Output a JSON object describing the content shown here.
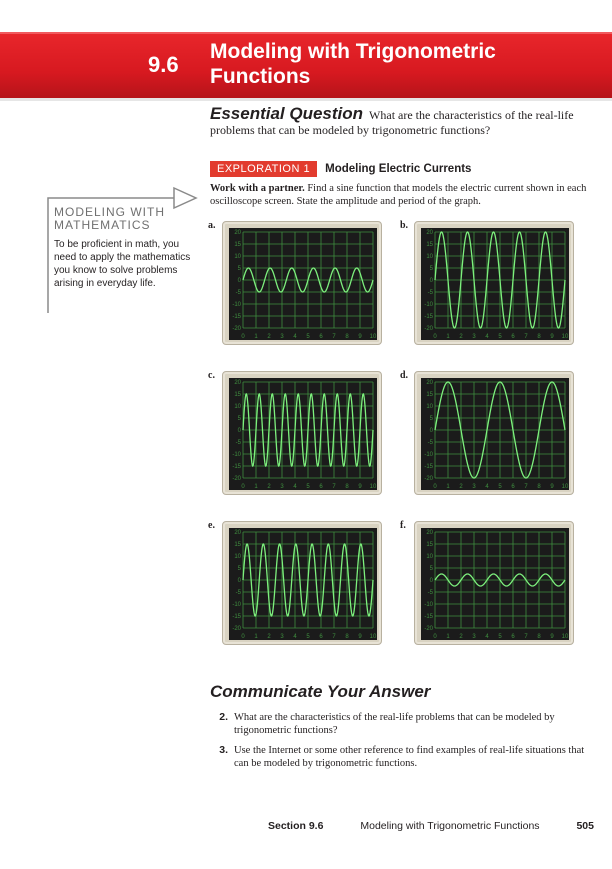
{
  "header": {
    "section_number": "9.6",
    "title": "Modeling with Trigonometric Functions"
  },
  "essential_question": {
    "label": "Essential Question",
    "text": "What are the characteristics of the real-life problems that can be modeled by trigonometric functions?"
  },
  "exploration": {
    "tag": "EXPLORATION 1",
    "title": "Modeling Electric Currents",
    "instruction_bold": "Work with a partner.",
    "instruction": "Find a sine function that models the electric current shown in each oscilloscope screen. State the amplitude and period of the graph."
  },
  "sidebar": {
    "heading_line1": "MODELING WITH",
    "heading_line2": "MATHEMATICS",
    "body": "To be proficient in math, you need to apply the mathematics you know to solve problems arising in everyday life."
  },
  "scopes": {
    "y_ticks": [
      "20",
      "15",
      "10",
      "5",
      "0",
      "-5",
      "-10",
      "-15",
      "-20"
    ],
    "x_ticks": [
      "0",
      "1",
      "2",
      "3",
      "4",
      "5",
      "6",
      "7",
      "8",
      "9",
      "10"
    ],
    "colors": {
      "screen": "#1b1b1b",
      "grid": "#3f8f3f",
      "trace": "#7df07d"
    },
    "panels": [
      {
        "label": "a.",
        "amplitude": 5,
        "cycles": 6
      },
      {
        "label": "b.",
        "amplitude": 20,
        "cycles": 5
      },
      {
        "label": "c.",
        "amplitude": 15,
        "cycles": 10
      },
      {
        "label": "d.",
        "amplitude": 20,
        "cycles": 2.5
      },
      {
        "label": "e.",
        "amplitude": 15,
        "cycles": 8
      },
      {
        "label": "f.",
        "amplitude": 2.5,
        "cycles": 5
      }
    ]
  },
  "communicate": {
    "heading": "Communicate Your Answer",
    "questions": [
      {
        "num": "2.",
        "text": "What are the characteristics of the real-life problems that can be modeled by trigonometric functions?"
      },
      {
        "num": "3.",
        "text": "Use the Internet or some other reference to find examples of real-life situations that can be modeled by trigonometric functions."
      }
    ]
  },
  "footer": {
    "section": "Section 9.6",
    "title": "Modeling with Trigonometric Functions",
    "page": "505"
  }
}
